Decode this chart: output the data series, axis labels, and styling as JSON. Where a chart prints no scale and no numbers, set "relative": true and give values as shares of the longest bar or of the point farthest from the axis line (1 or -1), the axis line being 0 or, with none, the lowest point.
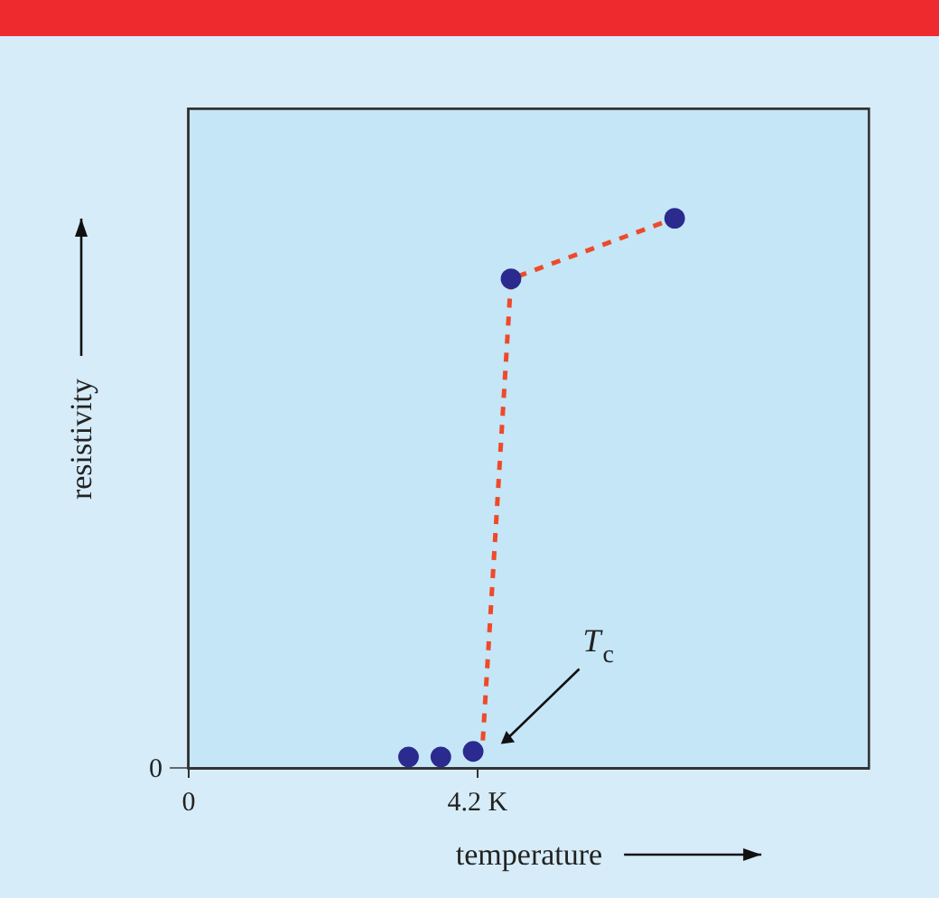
{
  "chart_data": {
    "type": "scatter",
    "xlabel": "temperature",
    "ylabel": "resistivity",
    "relative": true,
    "xlim": [
      0,
      9.9
    ],
    "xticks": [
      0,
      {
        "value": 4.2,
        "label": "4.2 K"
      }
    ],
    "grid": false,
    "series": [
      {
        "type": "line",
        "color": "#ee4a2a",
        "line_style": "dashed",
        "marker": "none",
        "x": [
          4.29,
          4.7,
          7.08
        ],
        "values": [
          0.05,
          0.89,
          1
        ]
      },
      {
        "color": "#2b2a8e",
        "marker": "circle",
        "x": [
          3.21,
          3.68,
          4.15,
          4.7,
          7.08
        ],
        "values": [
          0.02,
          0.02,
          0.03,
          0.89,
          1
        ]
      }
    ],
    "annotations": [
      "0",
      "T$_{c}$"
    ]
  }
}
